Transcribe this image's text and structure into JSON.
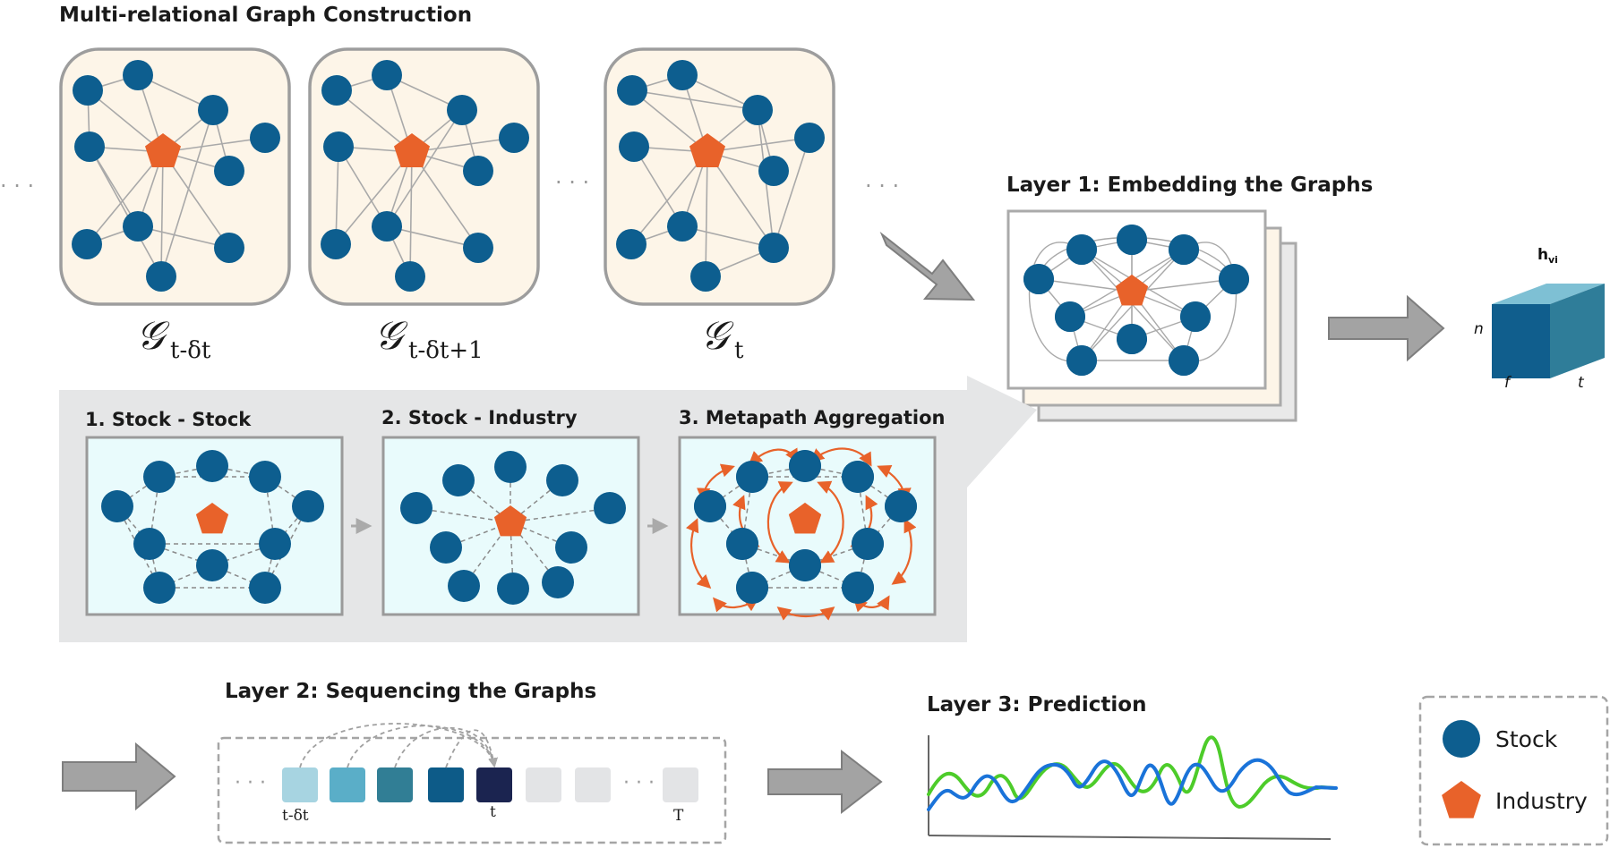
{
  "colors": {
    "stock": "#0d5e8f",
    "industry": "#e8622a",
    "panel_bg": "#fdf5e8",
    "graph_edge": "#a9a9a9",
    "arrow": "#a3a3a3",
    "metapath": "#e8622a",
    "section_bg": "#e5e6e7",
    "cyan_bg": "#e9fbfc",
    "pred_blue": "#1a73d9",
    "pred_green": "#4dcc2a"
  },
  "icons": {
    "stock": "circle",
    "industry": "pentagon",
    "flow_arrow": "block-arrow-right"
  },
  "titles": {
    "construction": "Multi-relational Graph Construction",
    "layer1": "Layer 1: Embedding the Graphs",
    "layer2": "Layer 2: Sequencing the Graphs",
    "layer3": "Layer 3: Prediction"
  },
  "snapshots": [
    {
      "script": "𝒢",
      "sub": "t-δt"
    },
    {
      "script": "𝒢",
      "sub": "t-δt+1"
    },
    {
      "script": "𝒢",
      "sub": "t"
    }
  ],
  "ellipsis": "· · ·",
  "relations": [
    "1. Stock - Stock",
    "2. Stock - Industry",
    "3. Metapath Aggregation"
  ],
  "cube": {
    "label_main": "h",
    "label_sub": "vi",
    "axis_n": "n",
    "axis_f": "f",
    "axis_t": "t",
    "colors": {
      "front": "#105e8d",
      "top": "#7ec0d4",
      "side": "#2f7d99"
    }
  },
  "sequence": {
    "labels": {
      "start": "t-δt",
      "current": "t",
      "end": "T"
    },
    "box_colors": [
      "#a7d4e1",
      "#5aaec8",
      "#317e95",
      "#0d5b88",
      "#1b2450",
      "#e3e4e6",
      "#e3e4e6",
      "#e3e4e6"
    ]
  },
  "legend": {
    "stock_label": "Stock",
    "industry_label": "Industry"
  }
}
